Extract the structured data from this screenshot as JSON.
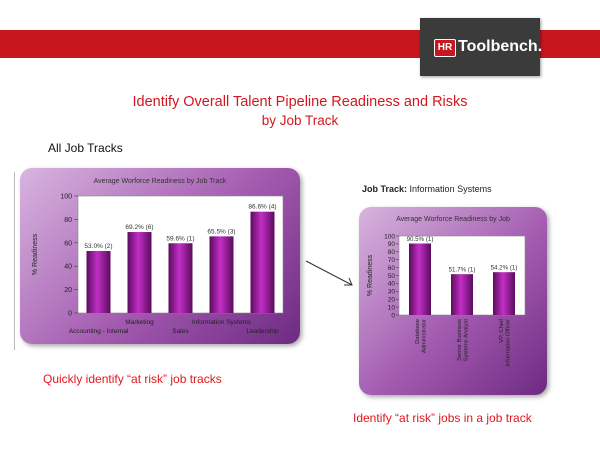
{
  "header": {
    "logo_mark": "HR",
    "logo_text": "Toolbench."
  },
  "slide": {
    "title": "Identify Overall Talent Pipeline Readiness and Risks",
    "subtitle": "by Job Track",
    "section_label": "All Job Tracks",
    "job_track_label": "Job Track:",
    "job_track_value": "Information Systems",
    "caption_left": "Quickly identify “at risk” job tracks",
    "caption_right": "Identify “at risk” jobs in a job track"
  },
  "colors": {
    "brand_red": "#c8161e",
    "bar_purple": "#a01ba4",
    "frame_purple": "#8a3f9c"
  },
  "chart_data": [
    {
      "type": "bar",
      "title": "Average Worforce Readiness by Job Track",
      "ylabel": "% Readiness",
      "xlabel": "",
      "ylim": [
        0,
        100
      ],
      "yticks": [
        0,
        20,
        40,
        60,
        80,
        100
      ],
      "categories": [
        "Accounting - Internal",
        "Marketing",
        "Sales",
        "Information Systems",
        "Leadership"
      ],
      "values": [
        53.0,
        69.2,
        59.6,
        65.5,
        86.6
      ],
      "data_labels": [
        "53.0% (2)",
        "69.2% (6)",
        "59.6% (1)",
        "65.5% (3)",
        "86.6% (4)"
      ],
      "grid": false
    },
    {
      "type": "bar",
      "title": "Average Worforce Readiness by Job",
      "ylabel": "% Readiness",
      "xlabel": "",
      "ylim": [
        0,
        100
      ],
      "yticks": [
        0,
        10,
        20,
        30,
        40,
        50,
        60,
        70,
        80,
        90,
        100
      ],
      "categories": [
        "Database Administrator",
        "Senior Business Systems Analyst",
        "VP, Chief Information Officer"
      ],
      "values": [
        90.5,
        51.7,
        54.2
      ],
      "data_labels": [
        "90.5% (1)",
        "51.7% (1)",
        "54.2% (1)"
      ],
      "grid": false
    }
  ]
}
